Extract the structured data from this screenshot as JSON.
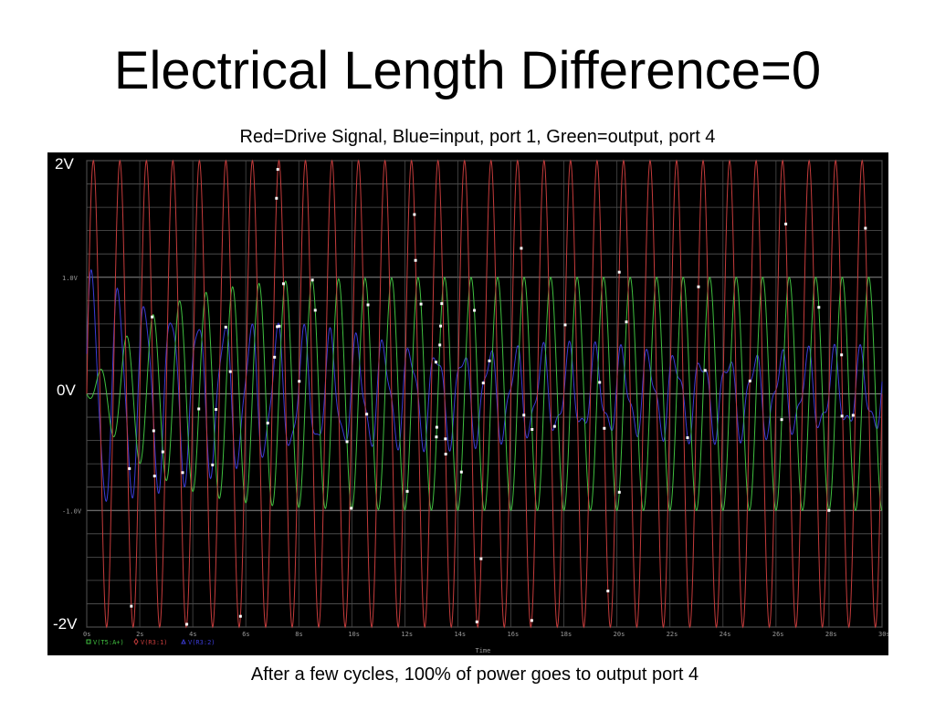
{
  "slide": {
    "title": "Electrical Length Difference=0",
    "subtitle": "Red=Drive Signal, Blue=input, port 1, Green=output, port 4",
    "caption": "After a few cycles, 100% of power goes to output port 4"
  },
  "chart_data": {
    "type": "line",
    "x_axis_title": "Time",
    "x_range": [
      0,
      30
    ],
    "x_ticks": [
      "0s",
      "2s",
      "4s",
      "6s",
      "8s",
      "10s",
      "12s",
      "14s",
      "16s",
      "18s",
      "20s",
      "22s",
      "24s",
      "26s",
      "28s",
      "30s"
    ],
    "y_range": [
      -2,
      2
    ],
    "y_major_labels": [
      "2V",
      "0V",
      "-2V"
    ],
    "y_minor_labels": [
      "1.0V",
      "-1.0V"
    ],
    "grid": true,
    "background": "#000000",
    "legend_placement": "bottom-left",
    "series": [
      {
        "name": "V(T5:A+)",
        "color": "#3fbf3f",
        "marker": "square",
        "period_s": 1.0,
        "description_values": {
          "start_amplitude": 0,
          "final_amplitude": 1.0
        }
      },
      {
        "name": "V(R3:1)",
        "color": "#c43b3b",
        "marker": "diamond",
        "period_s": 1.0,
        "description_values": {
          "amplitude": 2.0
        }
      },
      {
        "name": "V(R3:2)",
        "color": "#3b3bd6",
        "marker": "triangle",
        "period_s": 1.0,
        "description_values": {
          "start_amplitude": 1.0,
          "final_amplitude": 0.3
        }
      }
    ]
  }
}
